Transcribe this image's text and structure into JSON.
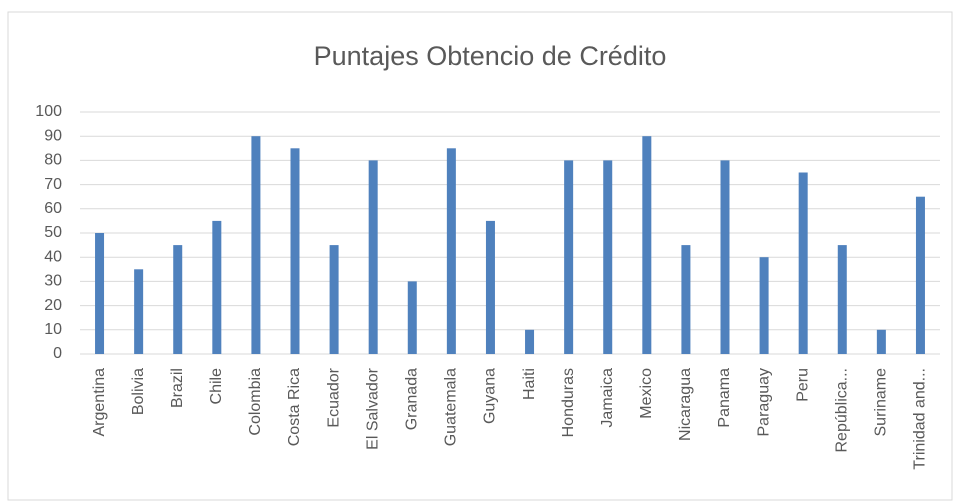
{
  "chart_data": {
    "type": "bar",
    "title": "Puntajes Obtencio de Crédito",
    "categories": [
      "Argentina",
      "Bolivia",
      "Brazil",
      "Chile",
      "Colombia",
      "Costa Rica",
      "Ecuador",
      "El Salvador",
      "Granada",
      "Guatemala",
      "Guyana",
      "Haiti",
      "Honduras",
      "Jamaica",
      "Mexico",
      "Nicaragua",
      "Panama",
      "Paraguay",
      "Peru",
      "República...",
      "Suriname",
      "Trinidad and..."
    ],
    "values": [
      50,
      35,
      45,
      55,
      90,
      85,
      45,
      80,
      30,
      85,
      55,
      10,
      80,
      80,
      90,
      45,
      80,
      40,
      75,
      45,
      10,
      65
    ],
    "color": "#4f81bd",
    "ylim": [
      0,
      100
    ],
    "yticks": [
      0,
      10,
      20,
      30,
      40,
      50,
      60,
      70,
      80,
      90,
      100
    ],
    "grid": true
  }
}
